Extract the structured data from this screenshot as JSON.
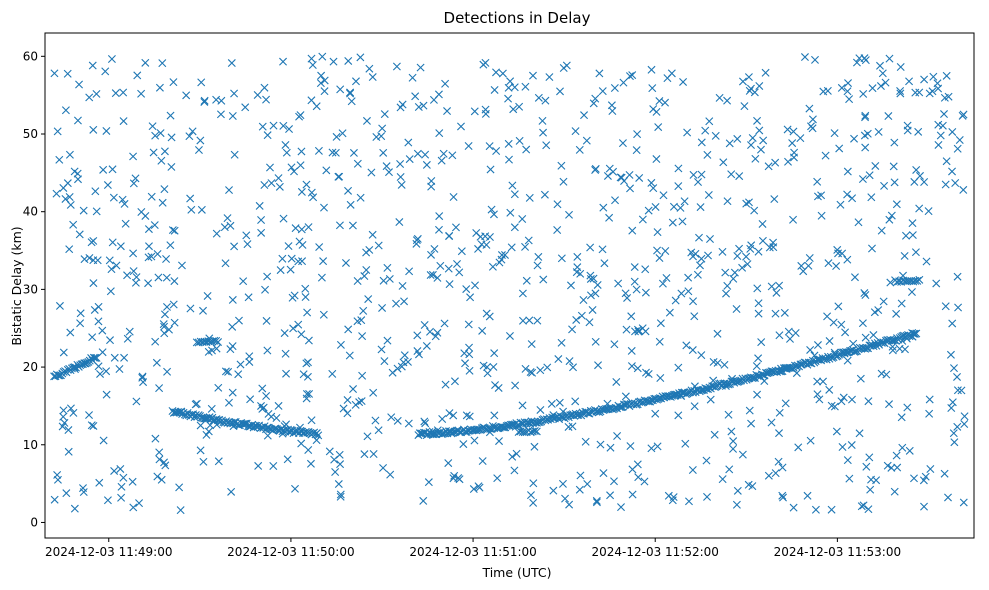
{
  "chart_data": {
    "type": "scatter",
    "title": "Detections in Delay",
    "xlabel": "Time (UTC)",
    "ylabel": "Bistatic Delay (km)",
    "marker": "x",
    "color": "#1f77b4",
    "xlim": [
      "2024-12-03 11:48:39",
      "2024-12-03 11:53:45"
    ],
    "ylim": [
      -2,
      63
    ],
    "grid": false,
    "xticks": [
      "2024-12-03 11:49:00",
      "2024-12-03 11:50:00",
      "2024-12-03 11:51:00",
      "2024-12-03 11:52:00",
      "2024-12-03 11:53:00"
    ],
    "yticks": [
      0,
      10,
      20,
      30,
      40,
      50,
      60
    ],
    "tracks": [
      {
        "t_start": "2024-12-03 11:48:42",
        "t_end": "2024-12-03 11:48:56",
        "delay_start": 18.7,
        "delay_end": 21.3
      },
      {
        "t_start": "2024-12-03 11:49:21",
        "t_end": "2024-12-03 11:50:09",
        "delay_start": 14.3,
        "delay_end": 11.4
      },
      {
        "t_start": "2024-12-03 11:50:42",
        "t_end": "2024-12-03 11:53:26",
        "delay_start": 11.4,
        "delay_end": 24.4
      }
    ],
    "short_tracks": [
      {
        "t_start": "2024-12-03 11:49:29",
        "t_end": "2024-12-03 11:49:36",
        "delay": 23.3
      },
      {
        "t_start": "2024-12-03 11:53:19",
        "t_end": "2024-12-03 11:53:27",
        "delay": 31.1
      },
      {
        "t_start": "2024-12-03 11:51:15",
        "t_end": "2024-12-03 11:51:21",
        "delay": 11.7
      }
    ],
    "clutter": {
      "t_start": "2024-12-03 11:48:42",
      "t_end": "2024-12-03 11:53:42",
      "delay_min": 1.5,
      "delay_max": 60,
      "count": 1150
    }
  }
}
